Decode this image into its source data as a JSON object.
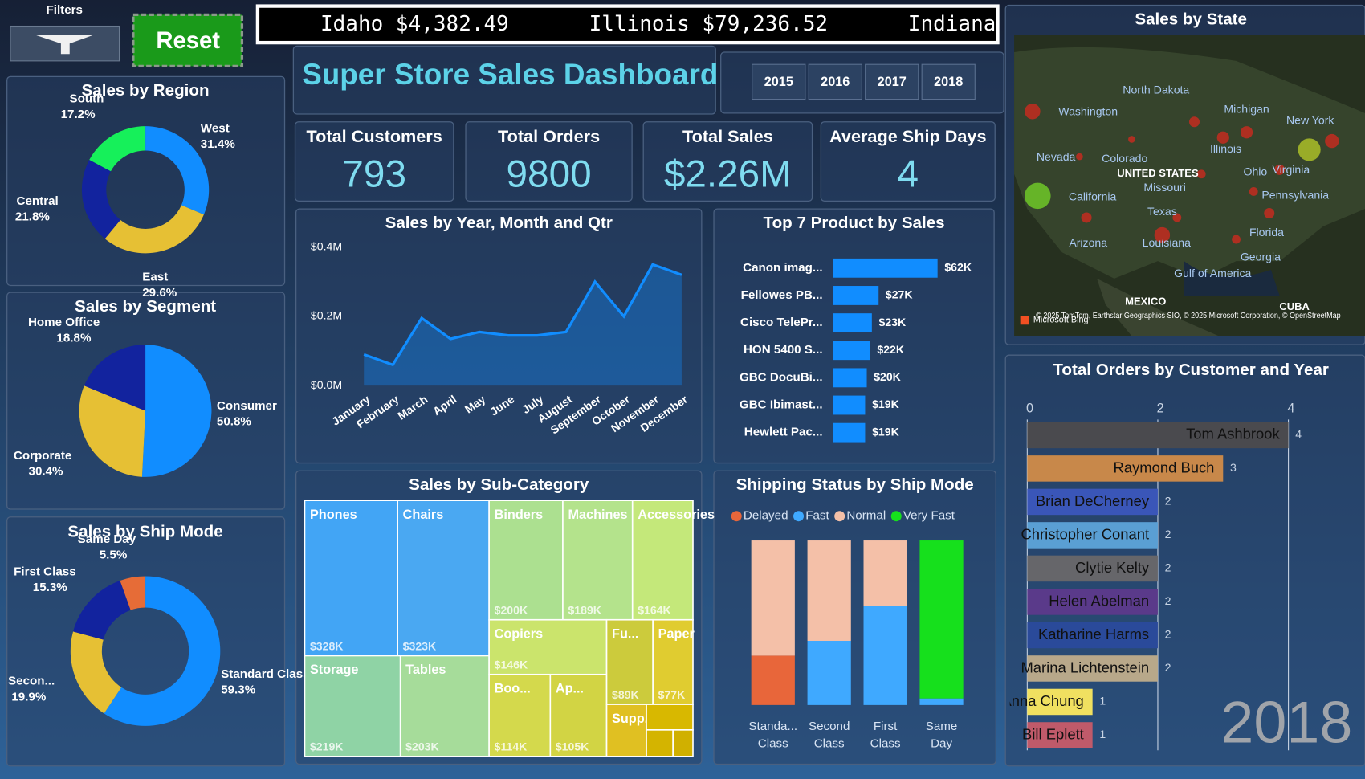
{
  "filters": {
    "label": "Filters",
    "reset": "Reset"
  },
  "ticker": [
    "Idaho $4,382.49",
    "Illinois $79,236.52",
    "Indiana"
  ],
  "header": {
    "title": "Super Store Sales Dashboard"
  },
  "years": [
    "2015",
    "2016",
    "2017",
    "2018"
  ],
  "kpis": [
    {
      "label": "Total Customers",
      "value": 793
    },
    {
      "label": "Total Orders",
      "value": 9800
    },
    {
      "label": "Total Sales",
      "value": "$2.26M"
    },
    {
      "label": "Average Ship Days",
      "value": 4
    }
  ],
  "map": {
    "title": "Sales by State",
    "labels": [
      "North Dakota",
      "Washington",
      "Michigan",
      "New York",
      "Nevada",
      "Colorado",
      "Illinois",
      "UNITED STATES",
      "Ohio",
      "Virginia",
      "Missouri",
      "California",
      "Pennsylvania",
      "Texas",
      "Arizona",
      "Louisiana",
      "Florida",
      "Georgia",
      "Gulf of America",
      "MEXICO",
      "CUBA"
    ],
    "attribution": "© 2025 TomTom, Earthstar Geographics SIO, © 2025 Microsoft Corporation, © OpenStreetMap",
    "provider": "Microsoft Bing"
  },
  "chart_data": [
    {
      "type": "donut",
      "title": "Sales by Region",
      "categories": [
        "West",
        "East",
        "Central",
        "South"
      ],
      "values": [
        31.4,
        29.6,
        21.8,
        17.2
      ],
      "value_labels": [
        "31.4%",
        "29.6%",
        "21.8%",
        "17.2%"
      ],
      "colors": [
        "#118dff",
        "#e6c034",
        "#12239e",
        "#16f05a"
      ]
    },
    {
      "type": "pie",
      "title": "Sales by Segment",
      "categories": [
        "Consumer",
        "Corporate",
        "Home Office"
      ],
      "values": [
        50.8,
        30.4,
        18.8
      ],
      "value_labels": [
        "50.8%",
        "30.4%",
        "18.8%"
      ],
      "colors": [
        "#118dff",
        "#e6c034",
        "#12239e"
      ]
    },
    {
      "type": "donut",
      "title": "Sales by Ship Mode",
      "categories": [
        "Standard Class",
        "Secon...",
        "First Class",
        "Same Day"
      ],
      "values": [
        59.3,
        19.9,
        15.3,
        5.5
      ],
      "value_labels": [
        "59.3%",
        "19.9%",
        "15.3%",
        "5.5%"
      ],
      "colors": [
        "#118dff",
        "#e6c034",
        "#12239e",
        "#e66c37"
      ]
    },
    {
      "type": "area",
      "title": "Sales by Year, Month and Qtr",
      "categories": [
        "January",
        "February",
        "March",
        "April",
        "May",
        "June",
        "July",
        "August",
        "September",
        "October",
        "November",
        "December"
      ],
      "values": [
        0.09,
        0.06,
        0.195,
        0.135,
        0.155,
        0.145,
        0.145,
        0.155,
        0.3,
        0.2,
        0.35,
        0.32
      ],
      "color": "#118dff",
      "ylim": [
        0,
        0.4
      ],
      "yticks": [
        {
          "value": 0,
          "label": "$0.0M"
        },
        {
          "value": 0.2,
          "label": "$0.2M"
        },
        {
          "value": 0.4,
          "label": "$0.4M"
        }
      ]
    },
    {
      "type": "hbar",
      "title": "Top 7 Product by Sales",
      "categories": [
        "Canon imag...",
        "Fellowes PB...",
        "Cisco TelePr...",
        "HON 5400 S...",
        "GBC DocuBi...",
        "GBC Ibimast...",
        "Hewlett Pac..."
      ],
      "values": [
        62,
        27,
        23,
        22,
        20,
        19,
        19
      ],
      "value_labels": [
        "$62K",
        "$27K",
        "$23K",
        "$22K",
        "$20K",
        "$19K",
        "$19K"
      ],
      "color": "#118dff"
    },
    {
      "type": "treemap",
      "title": "Sales by Sub-Category",
      "categories": [
        "Phones",
        "Chairs",
        "Storage",
        "Tables",
        "Binders",
        "Machines",
        "Accessories",
        "Copiers",
        "Boo...",
        "Ap...",
        "Fu...",
        "Paper",
        "Supp...",
        null,
        null,
        null
      ],
      "values": [
        328,
        323,
        219,
        203,
        200,
        189,
        164,
        146,
        114,
        105,
        89,
        77,
        47,
        27,
        16,
        12
      ],
      "value_labels": [
        "$328K",
        "$323K",
        "$219K",
        "$203K",
        "$200K",
        "$189K",
        "$164K",
        "$146K",
        "$114K",
        "$105K",
        "$89K",
        "$77K",
        null,
        null,
        null,
        null
      ],
      "colors": [
        "#42a5f5",
        "#4aa8f2",
        "#8fd3a5",
        "#a6dc9a",
        "#ace090",
        "#b4e38c",
        "#c4e87a",
        "#cbe46c",
        "#d4d94c",
        "#d2d444",
        "#cccb3c",
        "#e0cc30",
        "#e0c022",
        "#d8b800",
        "#d4b400",
        "#d0b000"
      ]
    },
    {
      "type": "stacked_bar",
      "title": "Shipping Status by Ship Mode",
      "categories": [
        "Standa... Class",
        "Second Class",
        "First Class",
        "Same Day"
      ],
      "ylim": [
        0,
        100
      ],
      "series": [
        {
          "name": "Delayed",
          "color": "#e8663a",
          "values": [
            30,
            0,
            0,
            0
          ]
        },
        {
          "name": "Fast",
          "color": "#3fa9ff",
          "values": [
            0,
            39,
            60,
            4
          ]
        },
        {
          "name": "Normal",
          "color": "#f4c0a8",
          "values": [
            70,
            61,
            40,
            0
          ]
        },
        {
          "name": "Very Fast",
          "color": "#16e01c",
          "values": [
            0,
            0,
            0,
            96
          ]
        }
      ]
    },
    {
      "type": "hbar_axis",
      "title": "Total Orders by Customer and Year",
      "categories": [
        "Tom Ashbrook",
        "Raymond Buch",
        "Brian DeCherney",
        "Christopher Conant",
        "Clytie Kelty",
        "Helen Abelman",
        "Katharine Harms",
        "Marina Lichtenstein",
        "Anna Chung",
        "Bill Eplett"
      ],
      "values": [
        4,
        3,
        2,
        2,
        2,
        2,
        2,
        2,
        1,
        1
      ],
      "colors": [
        "#4a4a4e",
        "#c8884a",
        "#3a56b8",
        "#5a9fd4",
        "#66666a",
        "#5a3a8a",
        "#2a4a9a",
        "#b8a88a",
        "#f0e060",
        "#c05a6a"
      ],
      "xlim": [
        0,
        5
      ],
      "xticks": [
        0,
        2,
        4
      ],
      "grid": true,
      "play_label": "2018"
    }
  ]
}
